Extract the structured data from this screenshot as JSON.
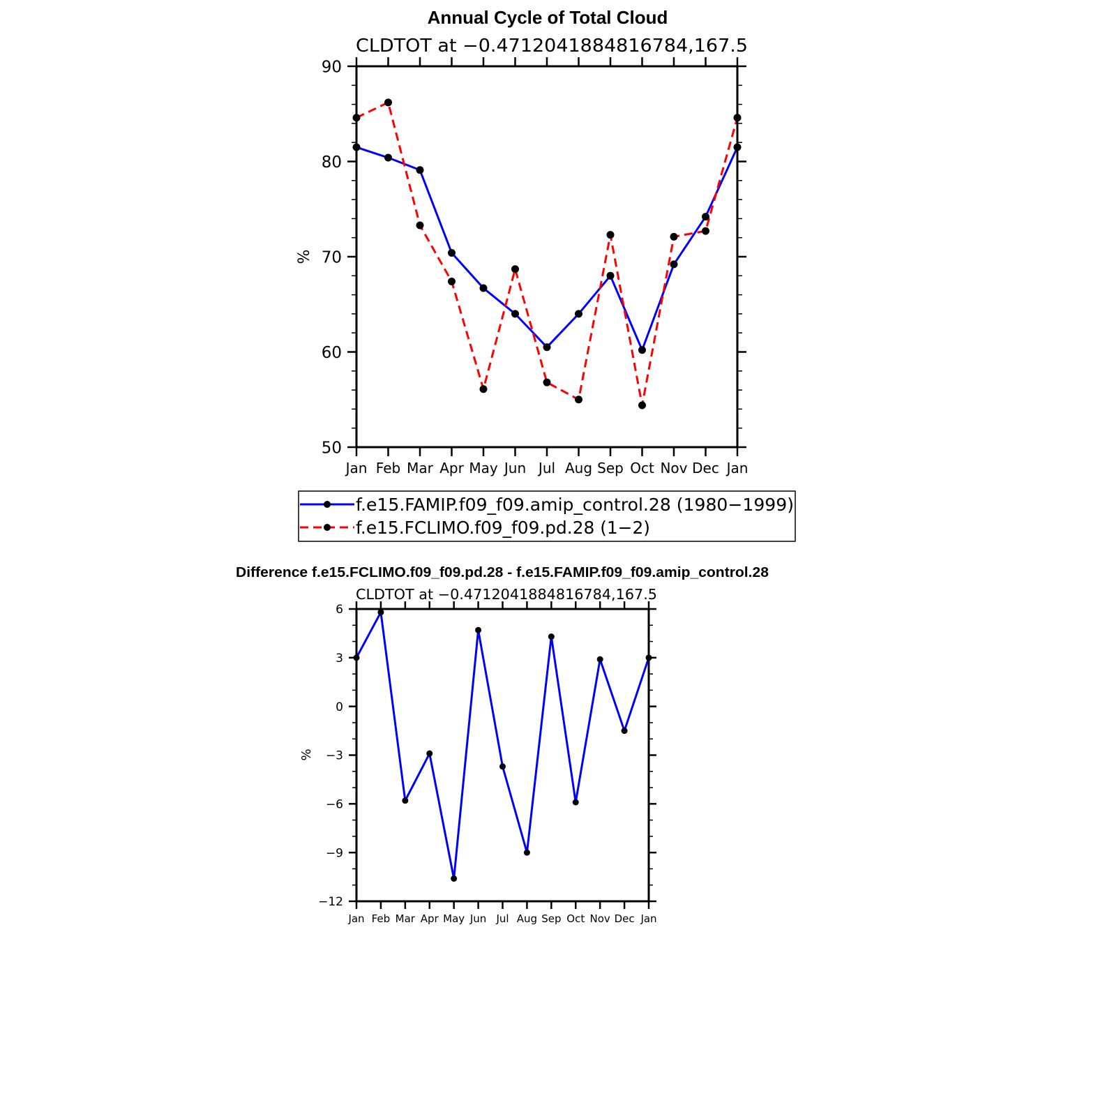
{
  "chart_data": [
    {
      "type": "line",
      "title": "Annual Cycle of Total Cloud",
      "subtitle": "CLDTOT at −0.4712041884816784,167.5",
      "xlabel": "",
      "ylabel": "%",
      "categories": [
        "Jan",
        "Feb",
        "Mar",
        "Apr",
        "May",
        "Jun",
        "Jul",
        "Aug",
        "Sep",
        "Oct",
        "Nov",
        "Dec",
        "Jan"
      ],
      "ylim": [
        50,
        90
      ],
      "yticks": [
        "50",
        "60",
        "70",
        "80",
        "90"
      ],
      "legend_position": "bottom",
      "series": [
        {
          "name": "f.e15.FAMIP.f09_f09.amip_control.28 (1980−1999)",
          "color": "#0000ff",
          "dash": "solid",
          "values": [
            81.5,
            80.4,
            79.1,
            70.4,
            66.7,
            64.0,
            60.5,
            64.0,
            68.0,
            60.2,
            69.2,
            74.2,
            81.5
          ]
        },
        {
          "name": "f.e15.FCLIMO.f09_f09.pd.28 (1−2)",
          "color": "#ff0000",
          "dash": "dashed",
          "values": [
            84.6,
            86.2,
            73.3,
            67.4,
            56.1,
            68.7,
            56.8,
            55.0,
            72.3,
            54.4,
            72.1,
            72.7,
            84.6
          ]
        }
      ]
    },
    {
      "type": "line",
      "title": "Difference f.e15.FCLIMO.f09_f09.pd.28 - f.e15.FAMIP.f09_f09.amip_control.28",
      "subtitle": "CLDTOT at −0.4712041884816784,167.5",
      "xlabel": "",
      "ylabel": "%",
      "categories": [
        "Jan",
        "Feb",
        "Mar",
        "Apr",
        "May",
        "Jun",
        "Jul",
        "Aug",
        "Sep",
        "Oct",
        "Nov",
        "Dec",
        "Jan"
      ],
      "ylim": [
        -12,
        6
      ],
      "yticks": [
        "−12",
        "−9",
        "−6",
        "−3",
        "0",
        "3",
        "6"
      ],
      "series": [
        {
          "color": "#0000ff",
          "dash": "solid",
          "values": [
            3.0,
            5.8,
            -5.8,
            -2.9,
            -10.6,
            4.7,
            -3.7,
            -9.0,
            4.3,
            -5.9,
            2.9,
            -1.5,
            3.0
          ]
        }
      ]
    }
  ]
}
